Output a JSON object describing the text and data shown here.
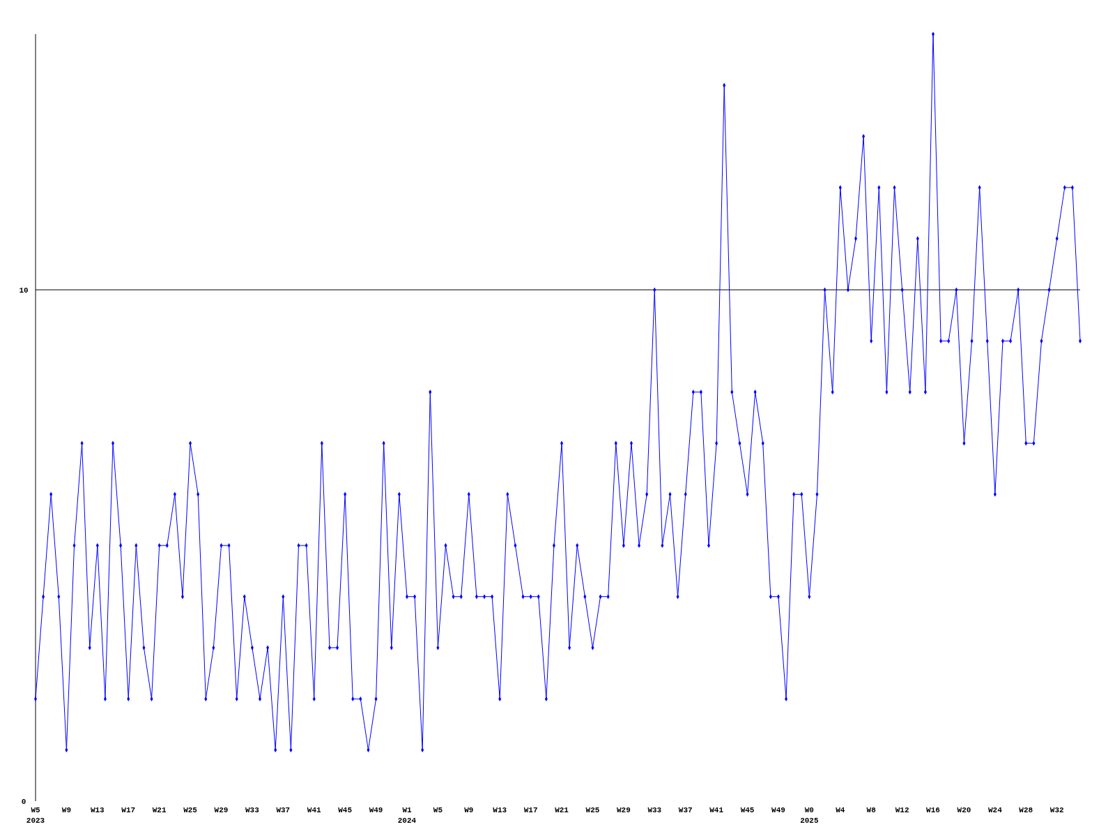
{
  "chart_data": {
    "type": "line",
    "categories": [
      "W5\n2023",
      null,
      null,
      null,
      "W9",
      null,
      null,
      null,
      "W13",
      null,
      null,
      null,
      "W17",
      null,
      null,
      null,
      "W21",
      null,
      null,
      null,
      "W25",
      null,
      null,
      null,
      "W29",
      null,
      null,
      null,
      "W33",
      null,
      null,
      null,
      "W37",
      null,
      null,
      null,
      "W41",
      null,
      null,
      null,
      "W45",
      null,
      null,
      null,
      "W49",
      null,
      null,
      null,
      "W1\n2024",
      null,
      null,
      null,
      "W5",
      null,
      null,
      null,
      "W9",
      null,
      null,
      null,
      "W13",
      null,
      null,
      null,
      "W17",
      null,
      null,
      null,
      "W21",
      null,
      null,
      null,
      "W25",
      null,
      null,
      null,
      "W29",
      null,
      null,
      null,
      "W33",
      null,
      null,
      null,
      "W37",
      null,
      null,
      null,
      "W41",
      null,
      null,
      null,
      "W45",
      null,
      null,
      null,
      "W49",
      null,
      null,
      null,
      "W0\n2025",
      null,
      null,
      null,
      "W4",
      null,
      null,
      null,
      "W8",
      null,
      null,
      null,
      "W12",
      null,
      null,
      null,
      "W16",
      null,
      null,
      null,
      "W20",
      null,
      null,
      null,
      "W24",
      null,
      null,
      null,
      "W28",
      null,
      null,
      null,
      "W32",
      null,
      null,
      null
    ],
    "series": [
      {
        "color": "#0000ff",
        "values": [
          2,
          4,
          6,
          4,
          1,
          5,
          7,
          3,
          5,
          2,
          7,
          5,
          2,
          5,
          3,
          2,
          5,
          5,
          6,
          4,
          7,
          6,
          2,
          3,
          5,
          5,
          2,
          4,
          3,
          2,
          3,
          1,
          4,
          1,
          5,
          5,
          2,
          7,
          3,
          3,
          6,
          2,
          2,
          1,
          2,
          7,
          3,
          6,
          4,
          4,
          1,
          8,
          3,
          5,
          4,
          4,
          6,
          4,
          4,
          4,
          2,
          6,
          5,
          4,
          4,
          4,
          2,
          5,
          7,
          3,
          5,
          4,
          3,
          4,
          4,
          7,
          5,
          7,
          5,
          6,
          10,
          5,
          6,
          4,
          6,
          8,
          8,
          5,
          7,
          14,
          8,
          7,
          6,
          8,
          7,
          4,
          4,
          2,
          6,
          6,
          4,
          6,
          10,
          8,
          12,
          10,
          11,
          13,
          9,
          12,
          8,
          12,
          10,
          8,
          11,
          8,
          15,
          9,
          9,
          10,
          7,
          9,
          12,
          9,
          6,
          9,
          9,
          10,
          7,
          7,
          9,
          10,
          11,
          12,
          12,
          9
        ]
      }
    ],
    "ylim": [
      0,
      15
    ],
    "yticks": [
      0,
      10
    ],
    "marker": "diamond",
    "line_style": "solid",
    "ref_lines": [
      {
        "axis": "y",
        "value": 10,
        "color": "#000000"
      }
    ]
  }
}
